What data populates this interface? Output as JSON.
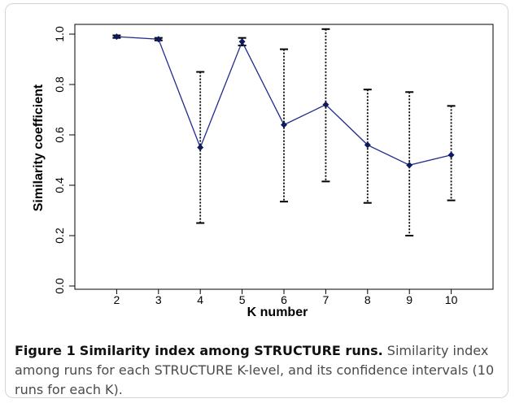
{
  "figure": {
    "caption_label": "Figure 1",
    "caption_title": "Similarity index among STRUCTURE runs.",
    "caption_text": "Similarity index among runs for each STRUCTURE K-level, and its confidence intervals (10 runs for each K)."
  },
  "chart_data": {
    "type": "line",
    "xlabel": "K number",
    "ylabel": "Similarity coefficient",
    "x": [
      2,
      3,
      4,
      5,
      6,
      7,
      8,
      9,
      10
    ],
    "y": [
      0.99,
      0.98,
      0.55,
      0.97,
      0.64,
      0.72,
      0.56,
      0.48,
      0.52
    ],
    "ci_lower": [
      0.985,
      0.975,
      0.25,
      0.955,
      0.335,
      0.415,
      0.33,
      0.2,
      0.34
    ],
    "ci_upper": [
      0.995,
      0.985,
      0.85,
      0.985,
      0.94,
      1.02,
      0.78,
      0.77,
      0.715
    ],
    "xticks": [
      "2",
      "3",
      "4",
      "5",
      "6",
      "7",
      "8",
      "9",
      "10"
    ],
    "yticks": [
      "0.0",
      "0.2",
      "0.4",
      "0.6",
      "0.8",
      "1.0"
    ],
    "xlim": [
      1,
      11
    ],
    "ylim": [
      0,
      1.1
    ],
    "grid": false,
    "colors": {
      "line": "#1f2a8c",
      "marker": "#0f1a5e",
      "error_bar": "#000000"
    }
  }
}
